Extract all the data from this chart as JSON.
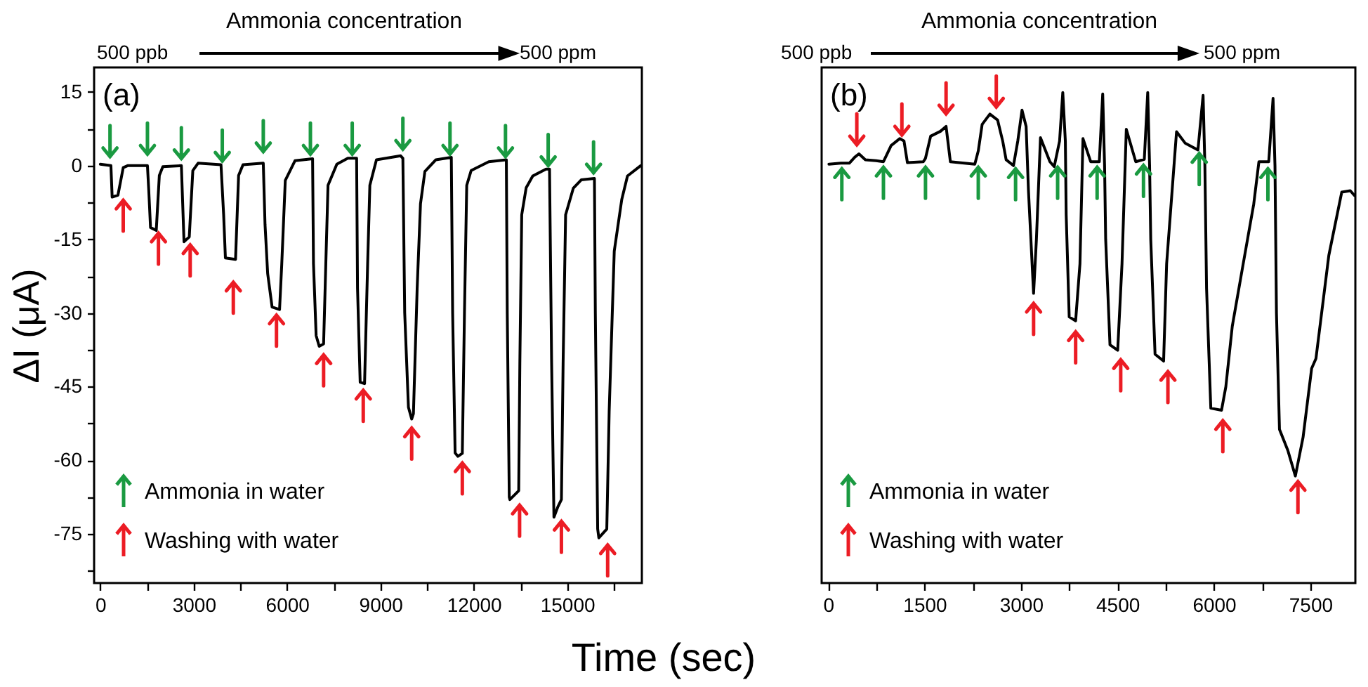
{
  "chart_data": [
    {
      "type": "line",
      "xlabel": "Time (sec)",
      "ylabel": "ΔI (μA)",
      "annotations": [
        "Ammonia concentration",
        "500 ppb",
        "500 ppm",
        "(a)",
        "Ammonia in water",
        "Washing with water"
      ],
      "x": [
        0,
        340,
        380,
        566,
        736,
        877,
        1514,
        1556,
        1613,
        1797,
        1896,
        2009,
        2604,
        2689,
        2858,
        2972,
        3141,
        3877,
        3962,
        4019,
        4344,
        4443,
        4585,
        5236,
        5292,
        5377,
        5519,
        5759,
        5830,
        5943,
        6254,
        6820,
        6849,
        6934,
        7033,
        7174,
        7245,
        7316,
        7599,
        7952,
        8235,
        8264,
        8349,
        8490,
        8589,
        8660,
        8872,
        9650,
        9721,
        9780,
        9900,
        10004,
        10060,
        10180,
        10287,
        10428,
        10782,
        11278,
        11320,
        11400,
        11490,
        11631,
        11700,
        11773,
        11915,
        12480,
        13046,
        13075,
        13140,
        13160,
        13443,
        13480,
        13540,
        13683,
        13895,
        14320,
        14433,
        14500,
        14575,
        14700,
        14815,
        14870,
        14950,
        15197,
        15452,
        15876,
        15905,
        15980,
        16018,
        16273,
        16350,
        16513,
        16754,
        16938,
        17362
      ],
      "series": [
        {
          "color": "#000000",
          "values": [
            0.3,
            0,
            -6.4,
            -6,
            -0.4,
            0,
            0,
            -5,
            -12.6,
            -13.2,
            -2,
            -0.2,
            0,
            -15.5,
            -14.5,
            -1,
            0.5,
            0.2,
            -10,
            -18.8,
            -19.1,
            -2,
            0.2,
            0.5,
            -12,
            -22,
            -28.8,
            -29.3,
            -20,
            -3,
            1,
            1.4,
            -20,
            -34.6,
            -36.8,
            -36.3,
            -20,
            -4,
            0.3,
            1.5,
            1.5,
            -25,
            -44.1,
            -44.4,
            -20,
            -4,
            1.2,
            2,
            1.5,
            -30,
            -49.2,
            -51.6,
            -50.5,
            -25,
            -7.8,
            -1.2,
            1.2,
            1.7,
            -30,
            -58.5,
            -59.2,
            -58.6,
            -30,
            -4,
            -1,
            0.8,
            1.2,
            -30,
            -67.5,
            -68,
            -66.2,
            -40,
            -10,
            -4.5,
            -2.1,
            -0.7,
            -0.7,
            -40,
            -71.6,
            -69.5,
            -68,
            -40,
            -10,
            -4.6,
            -2.9,
            -2.6,
            -30,
            -74,
            -75.8,
            -74,
            -50,
            -17.4,
            -6.9,
            -2.1,
            0
          ]
        }
      ],
      "xlim": [
        -200,
        17400
      ],
      "ylim": [
        -85,
        20
      ],
      "xticks": [
        0,
        {
          "value": 1500,
          "label": null
        },
        3000,
        {
          "value": 4500,
          "label": null
        },
        6000,
        {
          "value": 7500,
          "label": null
        },
        9000,
        {
          "value": 10500,
          "label": null
        },
        12000,
        {
          "value": 13500,
          "label": null
        },
        15000,
        {
          "value": 16500,
          "label": null
        }
      ],
      "yticks": [
        15,
        {
          "value": 7.5,
          "label": null
        },
        0,
        {
          "value": -7.5,
          "label": null
        },
        -15,
        {
          "value": -22.5,
          "label": null
        },
        -30,
        {
          "value": -37.5,
          "label": null
        },
        -45,
        {
          "value": -52.5,
          "label": null
        },
        -60,
        {
          "value": -67.5,
          "label": null
        },
        -75,
        {
          "value": -82.5,
          "label": null
        }
      ]
    },
    {
      "type": "line",
      "annotations": [
        "Ammonia concentration",
        "500 ppb",
        "500 ppm",
        "(b)",
        "Ammonia in water",
        "Washing with water"
      ],
      "x": [
        13,
        200,
        330,
        414,
        480,
        580,
        747,
        861,
        981,
        1114,
        1181,
        1234,
        1481,
        1515,
        1595,
        1748,
        1835,
        1902,
        2282,
        2336,
        2396,
        2516,
        2636,
        2716,
        2769,
        2883,
        2950,
        3016,
        3080,
        3116,
        3196,
        3240,
        3303,
        3450,
        3517,
        3600,
        3650,
        3690,
        3703,
        3750,
        3850,
        3917,
        3964,
        4084,
        4218,
        4271,
        4300,
        4317,
        4384,
        4504,
        4571,
        4638,
        4785,
        4918,
        4971,
        5000,
        5018,
        5085,
        5218,
        5265,
        5419,
        5552,
        5752,
        5832,
        5860,
        5886,
        5952,
        6119,
        6186,
        6286,
        6453,
        6620,
        6700,
        6853,
        6920,
        6950,
        6973,
        7020,
        7150,
        7267,
        7387,
        7520,
        7587,
        7787,
        7988,
        8121,
        8188
      ],
      "series": [
        {
          "color": "#000000",
          "values": [
            0.3,
            0.5,
            0.5,
            1.7,
            2.4,
            1.2,
            1,
            0.8,
            4.1,
            5.5,
            5,
            0.6,
            0.8,
            1.5,
            6,
            7,
            8,
            0.8,
            0.3,
            3,
            8.4,
            10.5,
            9.3,
            5,
            1.2,
            0,
            5,
            11.3,
            8,
            -5,
            -26,
            -15,
            5.7,
            0.8,
            -0.2,
            5,
            14.9,
            5,
            -10,
            -30.8,
            -31.6,
            -20,
            5.5,
            0.8,
            0.8,
            14.6,
            0,
            -15,
            -36.5,
            -37.6,
            -20,
            7.4,
            0.8,
            1.3,
            14.9,
            0,
            -15,
            -38.4,
            -39.8,
            -20,
            6.9,
            4.6,
            3.2,
            14.3,
            0,
            -25,
            -49.4,
            -49.8,
            -45,
            -32.7,
            -20.2,
            -7.8,
            0.8,
            0.8,
            13.7,
            0,
            -30,
            -53.7,
            -58,
            -63.2,
            -55.3,
            -41.3,
            -39.3,
            -18.3,
            -5.4,
            -5.1,
            -6.1
          ]
        }
      ],
      "xlim": [
        -100,
        8200
      ],
      "ylim": [
        -85,
        20
      ],
      "tick_labels": "x",
      "xticks": [
        0,
        {
          "value": 750,
          "label": null
        },
        1500,
        {
          "value": 2250,
          "label": null
        },
        3000,
        {
          "value": 3750,
          "label": null
        },
        4500,
        {
          "value": 5250,
          "label": null
        },
        6000,
        {
          "value": 6750,
          "label": null
        },
        7500
      ]
    }
  ]
}
